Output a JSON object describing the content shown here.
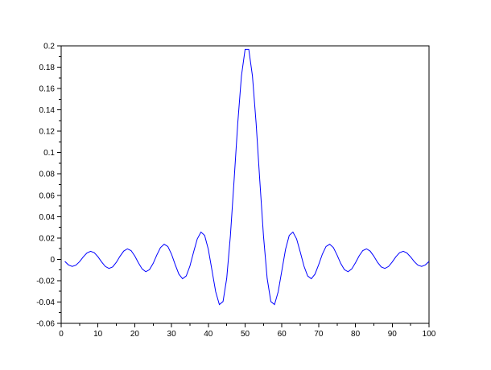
{
  "chart_data": {
    "type": "line",
    "title": "",
    "xlabel": "",
    "ylabel": "",
    "xlim": [
      0,
      100
    ],
    "ylim": [
      -0.06,
      0.2
    ],
    "grid": false,
    "line_color": "#0000ff",
    "x_ticks": [
      "0",
      "10",
      "20",
      "30",
      "40",
      "50",
      "60",
      "70",
      "80",
      "90",
      "100"
    ],
    "y_ticks": [
      "-0.06",
      "-0.04",
      "-0.02",
      "0",
      "0.02",
      "0.04",
      "0.06",
      "0.08",
      "0.1",
      "0.12",
      "0.14",
      "0.16",
      "0.18",
      "0.2"
    ],
    "x_start": 1,
    "values": [
      -0.002,
      -0.0053,
      -0.0067,
      -0.0055,
      -0.0022,
      0.0022,
      0.0059,
      0.0075,
      0.0062,
      0.0024,
      -0.0025,
      -0.0067,
      -0.0085,
      -0.0071,
      -0.0028,
      0.0029,
      0.0077,
      0.0098,
      0.0082,
      0.0032,
      -0.0033,
      -0.009,
      -0.0116,
      -0.0097,
      -0.0039,
      0.004,
      0.011,
      0.0141,
      0.012,
      0.0048,
      -0.005,
      -0.0139,
      -0.0182,
      -0.0156,
      -0.0063,
      0.0068,
      0.0191,
      0.0255,
      0.0224,
      0.0094,
      -0.0104,
      -0.0303,
      -0.0424,
      -0.0396,
      -0.0179,
      0.0219,
      0.0736,
      0.1273,
      0.1717,
      0.1967,
      0.1967,
      0.1717,
      0.1273,
      0.0736,
      0.0219,
      -0.0179,
      -0.0396,
      -0.0424,
      -0.0303,
      -0.0104,
      0.0094,
      0.0224,
      0.0255,
      0.0191,
      0.0068,
      -0.0063,
      -0.0156,
      -0.0182,
      -0.0139,
      -0.005,
      0.0048,
      0.012,
      0.0141,
      0.011,
      0.004,
      -0.0039,
      -0.0097,
      -0.0116,
      -0.009,
      -0.0033,
      0.0032,
      0.0082,
      0.0098,
      0.0077,
      0.0029,
      -0.0028,
      -0.0071,
      -0.0085,
      -0.0067,
      -0.0025,
      0.0024,
      0.0062,
      0.0075,
      0.0059,
      0.0022,
      -0.0022,
      -0.0055,
      -0.0067,
      -0.0053,
      -0.002
    ]
  }
}
